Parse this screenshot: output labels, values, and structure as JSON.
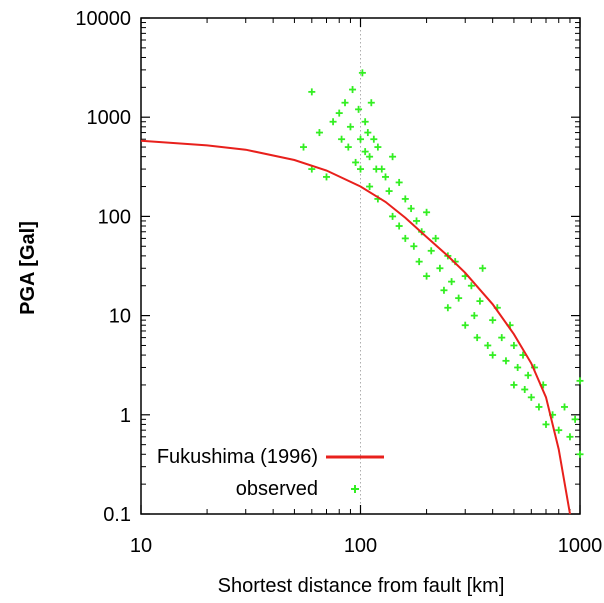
{
  "chart_data": {
    "type": "scatter",
    "title": "",
    "xlabel": "Shortest distance from fault [km]",
    "ylabel": "PGA [Gal]",
    "x_scale": "log",
    "y_scale": "log",
    "xlim": [
      10,
      1000
    ],
    "ylim": [
      0.1,
      10000
    ],
    "x_ticks": [
      "10",
      "100",
      "1000"
    ],
    "y_ticks": [
      "10000",
      "1000",
      "100",
      "10",
      "1",
      "0.1"
    ],
    "grid": "dotted vertical at 100",
    "legend_position": "bottom-left",
    "series": [
      {
        "name": "Fukushima (1996)",
        "kind": "line",
        "color": "#e8201c",
        "x": [
          10,
          20,
          30,
          50,
          70,
          100,
          130,
          160,
          200,
          250,
          300,
          400,
          500,
          600,
          700,
          800,
          900
        ],
        "y": [
          580,
          520,
          470,
          370,
          290,
          200,
          140,
          97,
          62,
          40,
          27,
          13,
          6.5,
          3.3,
          1.5,
          0.45,
          0.1
        ]
      },
      {
        "name": "observed",
        "kind": "scatter",
        "marker": "+",
        "color": "#33ee22",
        "x": [
          55,
          60,
          60,
          65,
          70,
          75,
          80,
          82,
          85,
          88,
          90,
          92,
          95,
          98,
          100,
          100,
          102,
          105,
          105,
          108,
          110,
          110,
          112,
          115,
          118,
          120,
          120,
          125,
          130,
          135,
          140,
          140,
          150,
          150,
          160,
          160,
          170,
          175,
          180,
          185,
          190,
          200,
          200,
          210,
          220,
          230,
          240,
          250,
          250,
          260,
          270,
          280,
          300,
          300,
          320,
          330,
          340,
          350,
          360,
          380,
          400,
          400,
          420,
          440,
          460,
          480,
          500,
          500,
          520,
          550,
          560,
          580,
          600,
          620,
          650,
          680,
          700,
          750,
          800,
          850,
          900,
          950,
          1000,
          1000
        ],
        "y": [
          500,
          1800,
          300,
          700,
          250,
          900,
          1100,
          600,
          1400,
          500,
          800,
          1900,
          350,
          1200,
          600,
          300,
          2800,
          900,
          450,
          700,
          400,
          200,
          1400,
          600,
          300,
          500,
          150,
          300,
          250,
          180,
          400,
          100,
          220,
          80,
          150,
          60,
          120,
          50,
          90,
          35,
          70,
          110,
          25,
          45,
          60,
          30,
          18,
          40,
          12,
          22,
          35,
          15,
          8,
          25,
          20,
          10,
          6,
          14,
          30,
          5,
          9,
          4,
          12,
          6,
          3.5,
          8,
          5,
          2,
          3,
          4,
          1.8,
          2.5,
          1.5,
          3,
          1.2,
          2,
          0.8,
          1,
          0.7,
          1.2,
          0.6,
          0.9,
          0.4,
          2.2
        ]
      }
    ]
  }
}
